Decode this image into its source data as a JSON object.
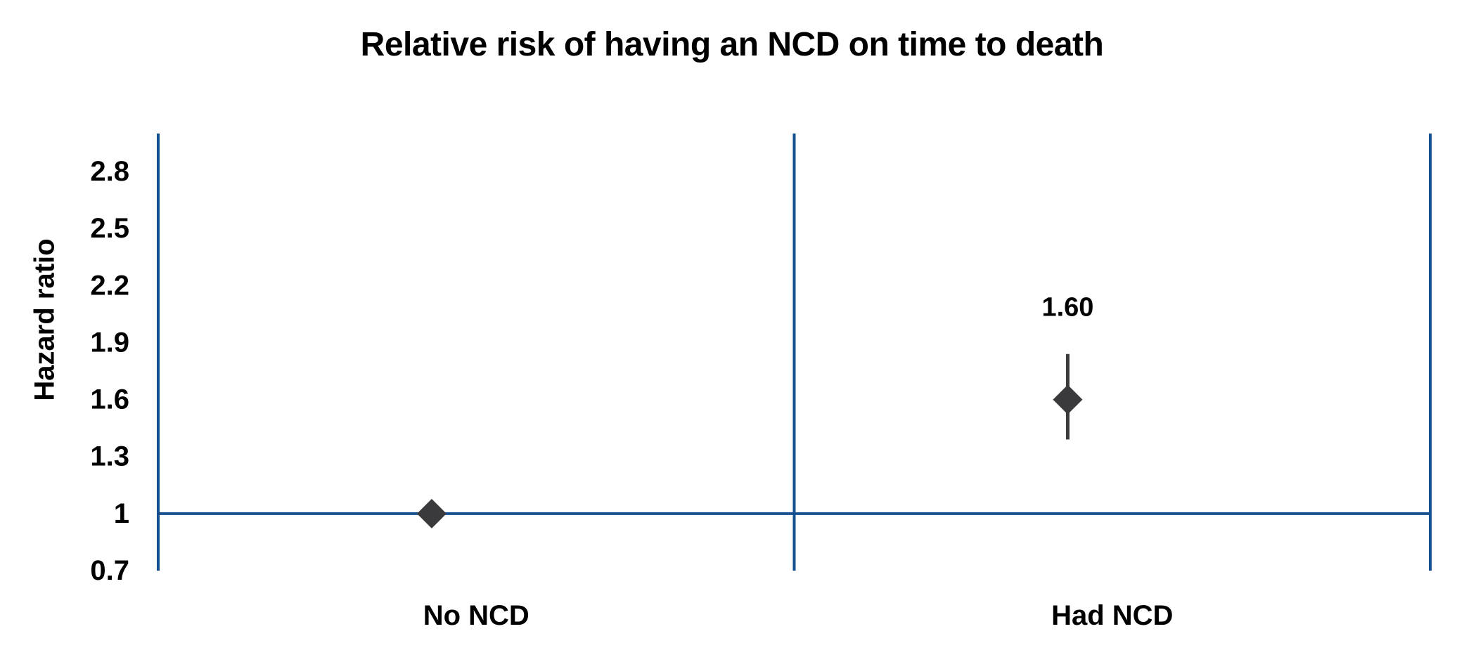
{
  "chart_data": {
    "type": "scatter",
    "title": "Relative risk of having an NCD on time to death",
    "ylabel": "Hazard ratio",
    "xlabel": "",
    "categories": [
      "No NCD",
      "Had NCD"
    ],
    "series": [
      {
        "name": "Hazard ratio",
        "marker": "diamond",
        "points": [
          {
            "category": "No NCD",
            "value": 1.0,
            "label": "",
            "ci_low": null,
            "ci_high": null
          },
          {
            "category": "Had NCD",
            "value": 1.6,
            "label": "1.60",
            "ci_low": 1.39,
            "ci_high": 1.84
          }
        ]
      }
    ],
    "yticks": [
      {
        "value": 2.8,
        "label": "2.8"
      },
      {
        "value": 2.5,
        "label": "2.5"
      },
      {
        "value": 2.2,
        "label": "2.2"
      },
      {
        "value": 1.9,
        "label": "1.9"
      },
      {
        "value": 1.6,
        "label": "1.6"
      },
      {
        "value": 1.3,
        "label": "1.3"
      },
      {
        "value": 1.0,
        "label": "1"
      },
      {
        "value": 0.7,
        "label": "0.7"
      }
    ],
    "ylim": [
      0.7,
      3.0
    ],
    "reference_line": 1.0,
    "grid": false,
    "legend": false,
    "colors": {
      "axis": "#14508f",
      "marker": "#3a3a3c",
      "text": "#000000"
    }
  }
}
